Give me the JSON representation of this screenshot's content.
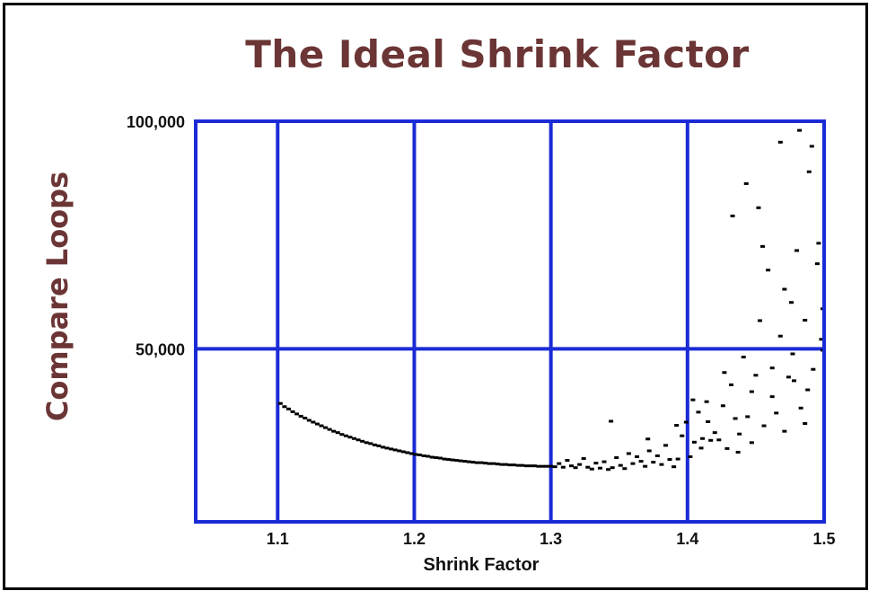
{
  "chart_data": {
    "type": "scatter",
    "title": "The Ideal Shrink Factor",
    "xlabel": "Shrink Factor",
    "ylabel": "Compare Loops",
    "xlim": [
      1.04,
      1.5
    ],
    "ylim": [
      12000,
      100000
    ],
    "x_ticks": [
      1.1,
      1.2,
      1.3,
      1.4,
      1.5
    ],
    "x_tick_labels": [
      "1.1",
      "1.2",
      "1.3",
      "1.4",
      "1.5"
    ],
    "y_ticks": [
      50000,
      100000
    ],
    "y_tick_labels": [
      "50,000",
      "100,000"
    ],
    "grid": true,
    "colors": {
      "grid": "#1a2bd6",
      "points": "#000000",
      "title": "#6b3535"
    },
    "series": [
      {
        "values": [
          [
            1.102,
            38000
          ],
          [
            1.105,
            37300
          ],
          [
            1.108,
            36800
          ],
          [
            1.111,
            36200
          ],
          [
            1.114,
            35700
          ],
          [
            1.117,
            35200
          ],
          [
            1.12,
            34800
          ],
          [
            1.123,
            34300
          ],
          [
            1.126,
            33900
          ],
          [
            1.129,
            33500
          ],
          [
            1.132,
            33100
          ],
          [
            1.135,
            32700
          ],
          [
            1.138,
            32300
          ],
          [
            1.141,
            31900
          ],
          [
            1.144,
            31600
          ],
          [
            1.147,
            31200
          ],
          [
            1.15,
            30900
          ],
          [
            1.153,
            30600
          ],
          [
            1.156,
            30300
          ],
          [
            1.159,
            30000
          ],
          [
            1.162,
            29700
          ],
          [
            1.165,
            29400
          ],
          [
            1.168,
            29200
          ],
          [
            1.171,
            28900
          ],
          [
            1.174,
            28700
          ],
          [
            1.177,
            28400
          ],
          [
            1.18,
            28200
          ],
          [
            1.183,
            28000
          ],
          [
            1.186,
            27800
          ],
          [
            1.189,
            27600
          ],
          [
            1.192,
            27400
          ],
          [
            1.195,
            27200
          ],
          [
            1.198,
            27000
          ],
          [
            1.201,
            26800
          ],
          [
            1.204,
            26700
          ],
          [
            1.207,
            26500
          ],
          [
            1.21,
            26400
          ],
          [
            1.213,
            26200
          ],
          [
            1.216,
            26100
          ],
          [
            1.219,
            26000
          ],
          [
            1.222,
            25800
          ],
          [
            1.225,
            25700
          ],
          [
            1.228,
            25600
          ],
          [
            1.231,
            25500
          ],
          [
            1.234,
            25400
          ],
          [
            1.237,
            25300
          ],
          [
            1.24,
            25200
          ],
          [
            1.243,
            25100
          ],
          [
            1.246,
            25000
          ],
          [
            1.249,
            25000
          ],
          [
            1.252,
            24900
          ],
          [
            1.255,
            24800
          ],
          [
            1.258,
            24800
          ],
          [
            1.261,
            24700
          ],
          [
            1.264,
            24600
          ],
          [
            1.267,
            24600
          ],
          [
            1.27,
            24500
          ],
          [
            1.273,
            24500
          ],
          [
            1.276,
            24400
          ],
          [
            1.279,
            24400
          ],
          [
            1.282,
            24300
          ],
          [
            1.285,
            24300
          ],
          [
            1.288,
            24300
          ],
          [
            1.291,
            24200
          ],
          [
            1.294,
            24200
          ],
          [
            1.297,
            24200
          ],
          [
            1.3,
            24200
          ],
          [
            1.303,
            24100
          ],
          [
            1.306,
            24800
          ],
          [
            1.309,
            24000
          ],
          [
            1.312,
            25500
          ],
          [
            1.315,
            24300
          ],
          [
            1.318,
            23900
          ],
          [
            1.321,
            24600
          ],
          [
            1.324,
            25900
          ],
          [
            1.327,
            24000
          ],
          [
            1.33,
            23600
          ],
          [
            1.333,
            24900
          ],
          [
            1.336,
            23800
          ],
          [
            1.339,
            25200
          ],
          [
            1.342,
            23500
          ],
          [
            1.345,
            23900
          ],
          [
            1.348,
            26100
          ],
          [
            1.351,
            24400
          ],
          [
            1.354,
            23700
          ],
          [
            1.357,
            27000
          ],
          [
            1.36,
            24800
          ],
          [
            1.363,
            26300
          ],
          [
            1.366,
            25300
          ],
          [
            1.369,
            24200
          ],
          [
            1.372,
            27600
          ],
          [
            1.375,
            25100
          ],
          [
            1.378,
            26500
          ],
          [
            1.381,
            24600
          ],
          [
            1.384,
            28800
          ],
          [
            1.387,
            25700
          ],
          [
            1.39,
            24100
          ],
          [
            1.393,
            25800
          ],
          [
            1.396,
            30900
          ],
          [
            1.399,
            33900
          ],
          [
            1.402,
            26300
          ],
          [
            1.405,
            29500
          ],
          [
            1.408,
            36100
          ],
          [
            1.411,
            30300
          ],
          [
            1.414,
            38400
          ],
          [
            1.417,
            29900
          ],
          [
            1.42,
            31600
          ],
          [
            1.423,
            30000
          ],
          [
            1.426,
            37500
          ],
          [
            1.429,
            28100
          ],
          [
            1.432,
            42100
          ],
          [
            1.435,
            34700
          ],
          [
            1.438,
            31300
          ],
          [
            1.441,
            48200
          ],
          [
            1.444,
            35100
          ],
          [
            1.447,
            29400
          ],
          [
            1.45,
            44200
          ],
          [
            1.453,
            56200
          ],
          [
            1.456,
            33100
          ],
          [
            1.459,
            67300
          ],
          [
            1.462,
            45800
          ],
          [
            1.465,
            35900
          ],
          [
            1.468,
            52800
          ],
          [
            1.471,
            63100
          ],
          [
            1.474,
            43800
          ],
          [
            1.477,
            48900
          ],
          [
            1.48,
            71600
          ],
          [
            1.483,
            37000
          ],
          [
            1.486,
            56300
          ],
          [
            1.489,
            88900
          ],
          [
            1.492,
            45500
          ],
          [
            1.495,
            68700
          ],
          [
            1.498,
            52100
          ],
          [
            1.433,
            79200
          ],
          [
            1.443,
            86300
          ],
          [
            1.452,
            81000
          ],
          [
            1.468,
            95400
          ],
          [
            1.482,
            98000
          ],
          [
            1.491,
            94500
          ],
          [
            1.496,
            73200
          ],
          [
            1.476,
            60200
          ],
          [
            1.488,
            41000
          ],
          [
            1.462,
            39500
          ],
          [
            1.455,
            72500
          ],
          [
            1.471,
            31900
          ],
          [
            1.486,
            33600
          ],
          [
            1.499,
            49700
          ],
          [
            1.499,
            58800
          ],
          [
            1.344,
            34100
          ],
          [
            1.371,
            30200
          ],
          [
            1.392,
            33200
          ],
          [
            1.41,
            28200
          ],
          [
            1.427,
            44800
          ],
          [
            1.437,
            27300
          ],
          [
            1.415,
            34000
          ],
          [
            1.404,
            38800
          ],
          [
            1.447,
            40600
          ],
          [
            1.478,
            43000
          ]
        ]
      }
    ]
  }
}
